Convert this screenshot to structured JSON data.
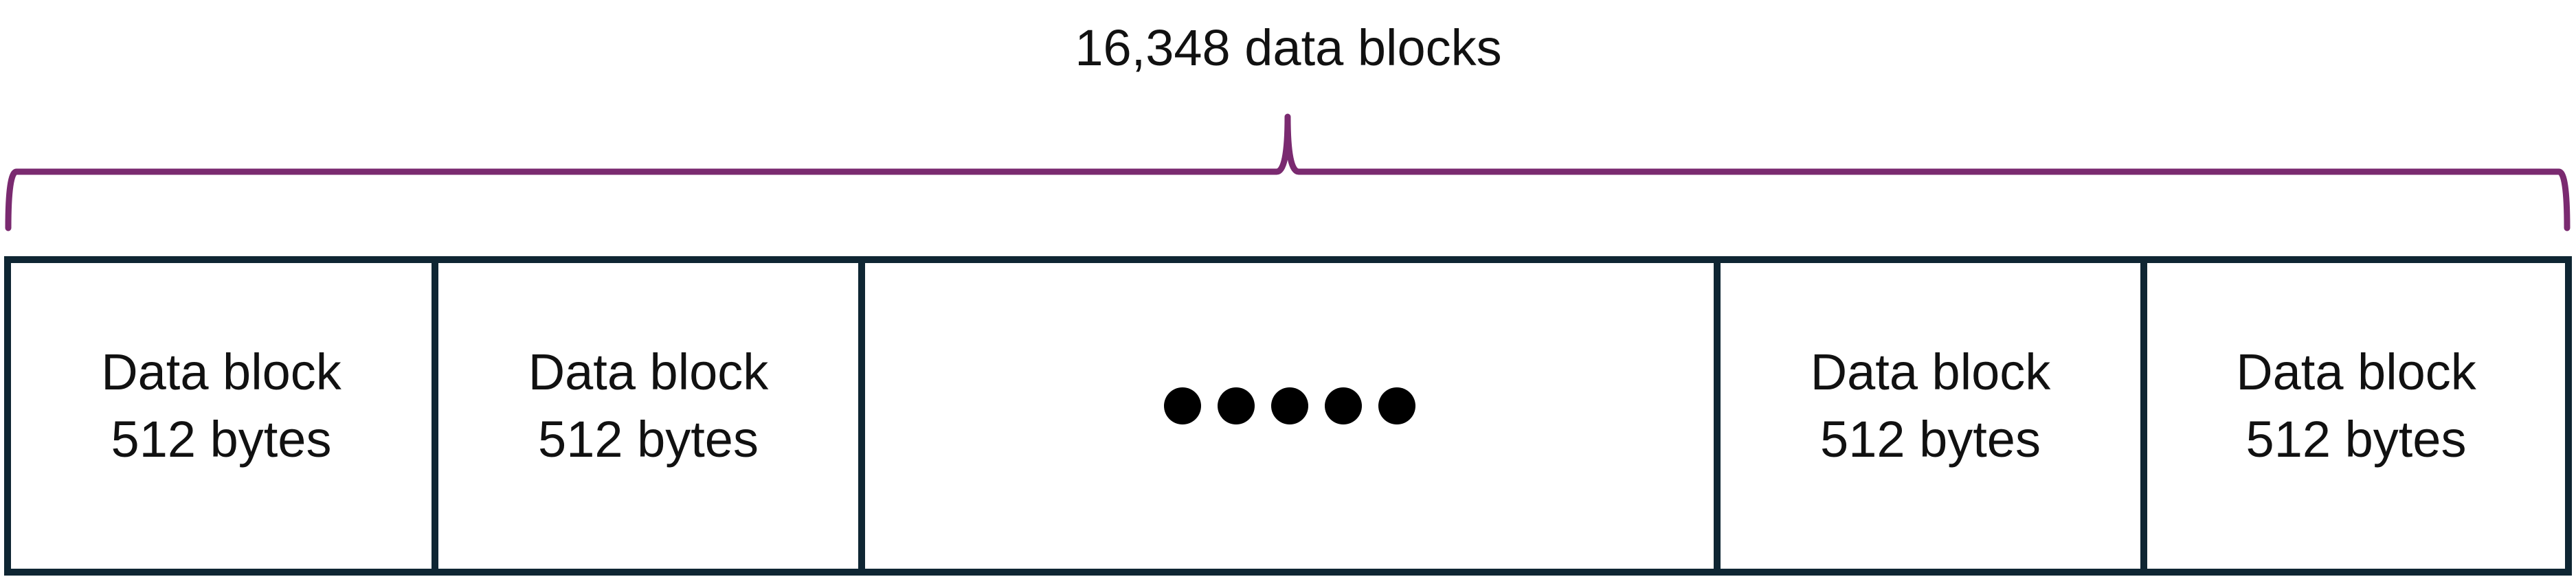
{
  "header": {
    "total_label": "16,348 data blocks"
  },
  "colors": {
    "brace": "#7a2a70",
    "block_border": "#0f2633"
  },
  "blocks": [
    {
      "label": "Data block",
      "size": "512 bytes"
    },
    {
      "label": "Data block",
      "size": "512 bytes"
    },
    {
      "ellipsis_dots": 5
    },
    {
      "label": "Data block",
      "size": "512 bytes"
    },
    {
      "label": "Data block",
      "size": "512 bytes"
    }
  ]
}
